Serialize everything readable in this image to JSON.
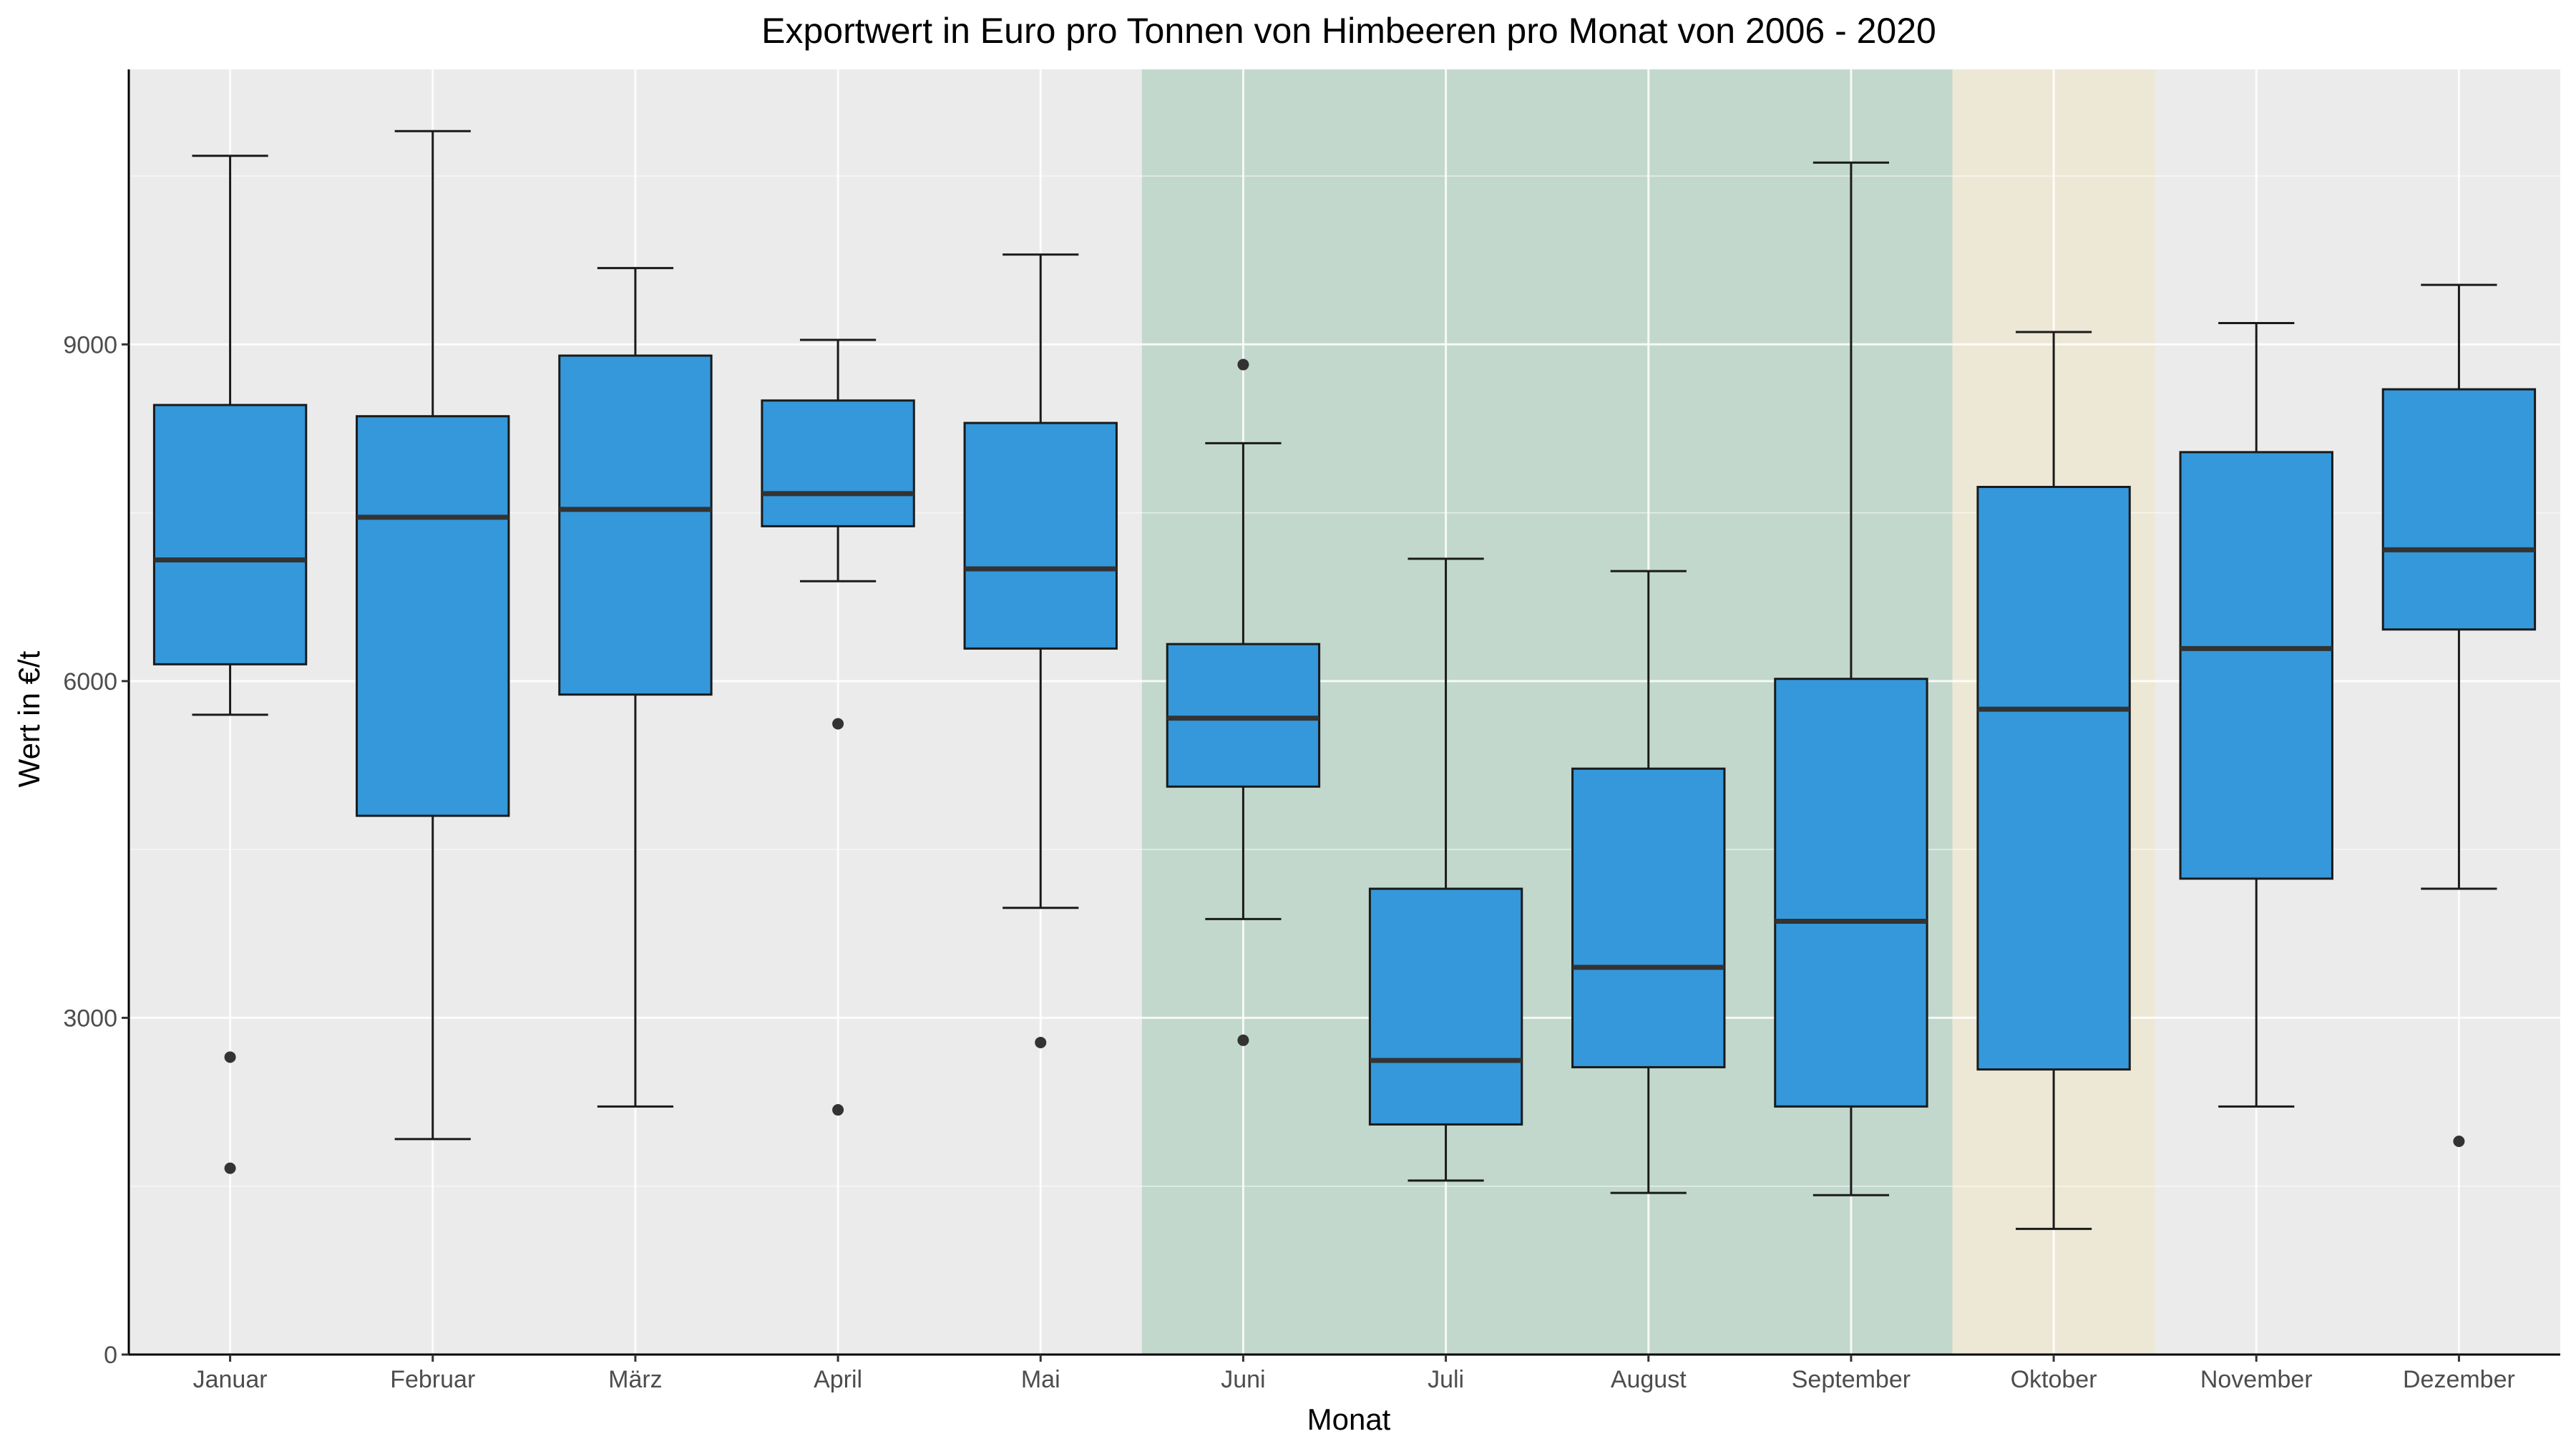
{
  "chart_data": {
    "type": "boxplot",
    "title": "Exportwert in Euro pro Tonnen von Himbeeren pro Monat von 2006 - 2020",
    "xlabel": "Monat",
    "ylabel": "Wert in €/t",
    "ylim": [
      0,
      11450
    ],
    "yticks": [
      0,
      3000,
      6000,
      9000
    ],
    "grid": true,
    "legend": "none",
    "colors": {
      "panel": "#ebebeb",
      "grid": "#ffffff",
      "box_fill": "#3498db",
      "box_stroke": "#1a1a1a",
      "median": "#333333",
      "outlier": "#333333",
      "highlight_green": "#c2d8cd",
      "highlight_yellow": "#ede8d5"
    },
    "highlights": [
      {
        "from": "Juni",
        "to": "September",
        "color": "#c2d8cd"
      },
      {
        "from": "Oktober",
        "to": "Oktober",
        "color": "#ede8d5"
      }
    ],
    "categories": [
      "Januar",
      "Februar",
      "März",
      "April",
      "Mai",
      "Juni",
      "Juli",
      "August",
      "September",
      "Oktober",
      "November",
      "Dezember"
    ],
    "boxes": [
      {
        "whisker_low": 5700,
        "q1": 6150,
        "median": 7080,
        "q3": 8460,
        "whisker_high": 10680,
        "outliers": [
          2650,
          1660
        ]
      },
      {
        "whisker_low": 1920,
        "q1": 4800,
        "median": 7460,
        "q3": 8360,
        "whisker_high": 10900,
        "outliers": []
      },
      {
        "whisker_low": 2210,
        "q1": 5880,
        "median": 7530,
        "q3": 8900,
        "whisker_high": 9680,
        "outliers": []
      },
      {
        "whisker_low": 6890,
        "q1": 7380,
        "median": 7670,
        "q3": 8500,
        "whisker_high": 9040,
        "outliers": [
          5620,
          2180
        ]
      },
      {
        "whisker_low": 3980,
        "q1": 6290,
        "median": 7000,
        "q3": 8300,
        "whisker_high": 9800,
        "outliers": [
          2780
        ]
      },
      {
        "whisker_low": 3880,
        "q1": 5060,
        "median": 5670,
        "q3": 6330,
        "whisker_high": 8120,
        "outliers": [
          8820,
          2800
        ]
      },
      {
        "whisker_low": 1550,
        "q1": 2050,
        "median": 2620,
        "q3": 4150,
        "whisker_high": 7090,
        "outliers": []
      },
      {
        "whisker_low": 1440,
        "q1": 2560,
        "median": 3450,
        "q3": 5220,
        "whisker_high": 6980,
        "outliers": []
      },
      {
        "whisker_low": 1420,
        "q1": 2210,
        "median": 3860,
        "q3": 6020,
        "whisker_high": 10620,
        "outliers": []
      },
      {
        "whisker_low": 1120,
        "q1": 2540,
        "median": 5750,
        "q3": 7730,
        "whisker_high": 9110,
        "outliers": []
      },
      {
        "whisker_low": 2210,
        "q1": 4240,
        "median": 6290,
        "q3": 8040,
        "whisker_high": 9190,
        "outliers": []
      },
      {
        "whisker_low": 4150,
        "q1": 6460,
        "median": 7170,
        "q3": 8600,
        "whisker_high": 9530,
        "outliers": [
          1900
        ]
      }
    ]
  }
}
